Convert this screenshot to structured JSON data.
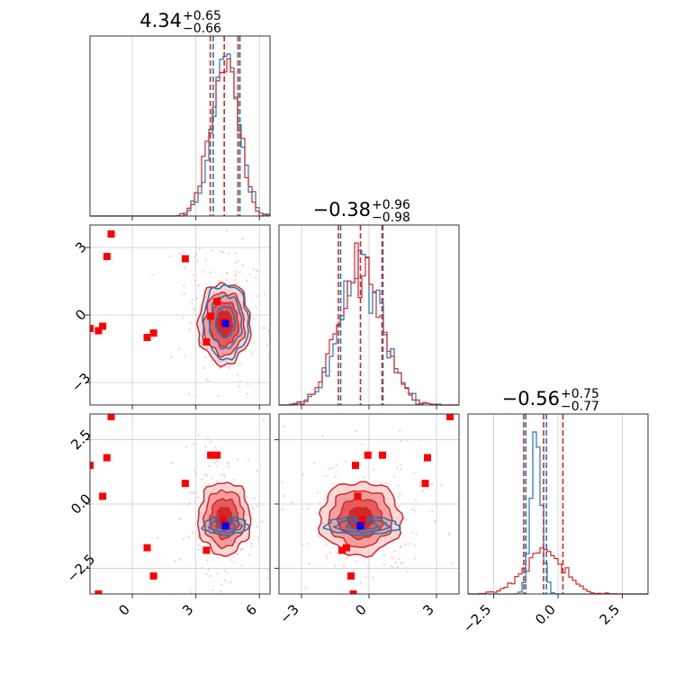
{
  "colors": {
    "red": "#d62728",
    "blue": "#1f77b4",
    "redFill": "#d62728",
    "marker_red": "#ff0000",
    "marker_blue": "#0000ff",
    "grid": "#cccccc",
    "axis": "#333333"
  },
  "chart_data": {
    "type": "corner",
    "grid": true,
    "titles": [
      {
        "main": "4.34",
        "sup": "+0.65",
        "sub": "−0.66"
      },
      {
        "main": "−0.38",
        "sup": "+0.96",
        "sub": "−0.98"
      },
      {
        "main": "−0.56",
        "sup": "+0.75",
        "sub": "−0.77"
      }
    ],
    "params": [
      {
        "range": [
          -2,
          6.5
        ],
        "ticks": [
          0,
          3,
          6
        ],
        "tick_labels": [
          "0",
          "3",
          "6"
        ]
      },
      {
        "range": [
          -4,
          4
        ],
        "ticks": [
          -3,
          0,
          3
        ],
        "tick_labels": [
          "−3",
          "0",
          "3"
        ]
      },
      {
        "range": [
          -3.5,
          3.5
        ],
        "ticks": [
          -2.5,
          0,
          2.5
        ],
        "tick_labels": [
          "−2.5",
          "0.0",
          "2.5"
        ]
      }
    ],
    "series": [
      {
        "name": "red",
        "color": "red",
        "mean": [
          4.34,
          -0.38,
          -0.56
        ],
        "std": [
          0.66,
          0.97,
          0.76
        ],
        "quantiles": [
          [
            3.68,
            4.99
          ],
          [
            -1.36,
            0.58
          ],
          [
            -1.33,
            0.19
          ]
        ]
      },
      {
        "name": "blue",
        "color": "blue",
        "mean": [
          4.4,
          -0.3,
          -0.85
        ],
        "std": [
          0.62,
          0.95,
          0.2
        ],
        "quantiles": [
          [
            3.82,
            5.08
          ],
          [
            -1.26,
            0.62
          ],
          [
            -1.25,
            -0.45
          ]
        ]
      }
    ],
    "markers_red": [
      [
        -1.0,
        3.6,
        3.4
      ],
      [
        -1.2,
        2.6,
        1.8
      ],
      [
        -1.4,
        -0.5,
        0.3
      ],
      [
        -1.6,
        -0.7,
        -3.5
      ],
      [
        -2.0,
        -0.6,
        1.5
      ],
      [
        0.7,
        -1.0,
        -1.7
      ],
      [
        1.0,
        -0.8,
        -2.8
      ],
      [
        3.7,
        -0.05,
        1.9
      ],
      [
        4.3,
        -0.3,
        -0.6
      ],
      [
        2.5,
        2.5,
        0.8
      ],
      [
        3.5,
        -1.2,
        -1.8
      ],
      [
        4.0,
        0.6,
        1.9
      ]
    ],
    "marker_blue": [
      4.4,
      -0.38,
      -0.85
    ]
  }
}
